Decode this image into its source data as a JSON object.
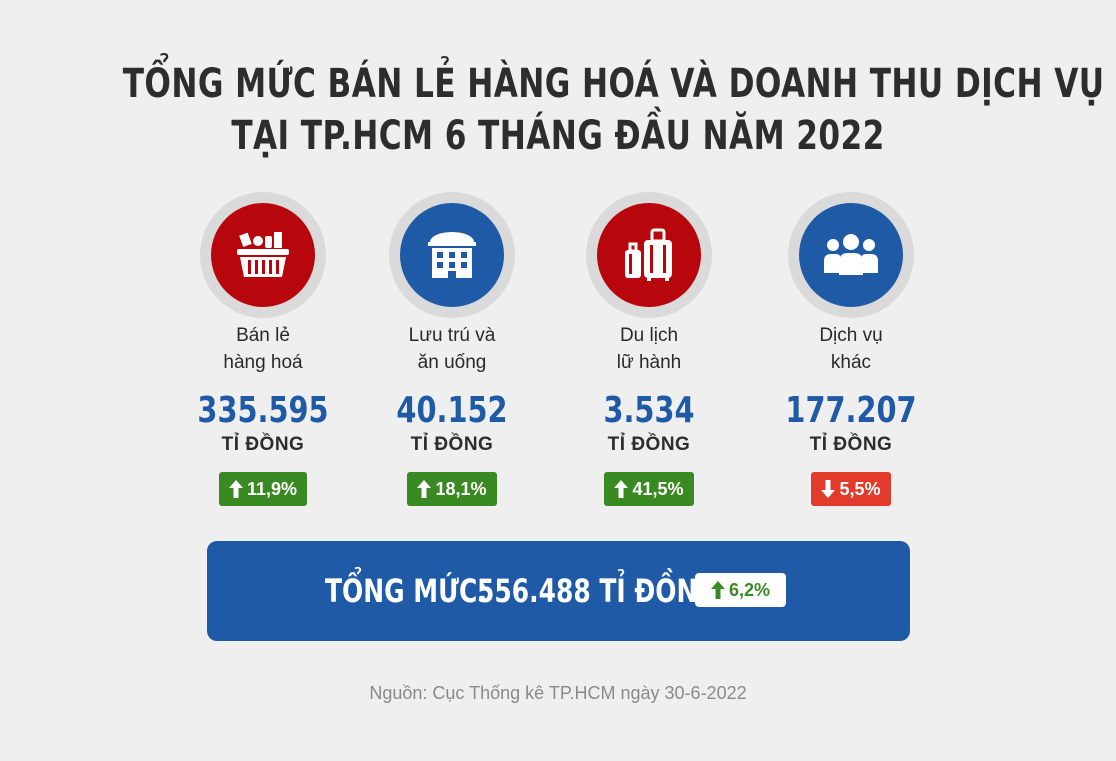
{
  "title": {
    "line1": "TỔNG MỨC BÁN LẺ HÀNG HOÁ VÀ DOANH THU DỊCH VỤ",
    "line2": "TẠI TP.HCM 6 THÁNG ĐẦU NĂM 2022"
  },
  "colors": {
    "red": "#b8070c",
    "blue": "#1f5aa6",
    "up_green": "#3a8a24",
    "down_red": "#e23a2b"
  },
  "categories": [
    {
      "icon": "shopping-basket-icon",
      "line1": "Bán lẻ",
      "line2": "hàng hoá",
      "value": "335.595",
      "unit": "TỈ ĐỒNG",
      "change": "11,9%",
      "direction": "up"
    },
    {
      "icon": "building-icon",
      "line1": "Lưu trú và",
      "line2": "ăn uống",
      "value": "40.152",
      "unit": "TỈ ĐỒNG",
      "change": "18,1%",
      "direction": "up"
    },
    {
      "icon": "luggage-icon",
      "line1": "Du lịch",
      "line2": "lữ hành",
      "value": "3.534",
      "unit": "TỈ ĐỒNG",
      "change": "41,5%",
      "direction": "up"
    },
    {
      "icon": "people-icon",
      "line1": "Dịch vụ",
      "line2": "khác",
      "value": "177.207",
      "unit": "TỈ ĐỒNG",
      "change": "5,5%",
      "direction": "down"
    }
  ],
  "total": {
    "label": "TỔNG MỨC:",
    "value": "556.488 TỈ ĐỒNG",
    "change": "6,2%",
    "direction": "up"
  },
  "source": "Nguồn: Cục Thống kê TP.HCM ngày 30-6-2022"
}
